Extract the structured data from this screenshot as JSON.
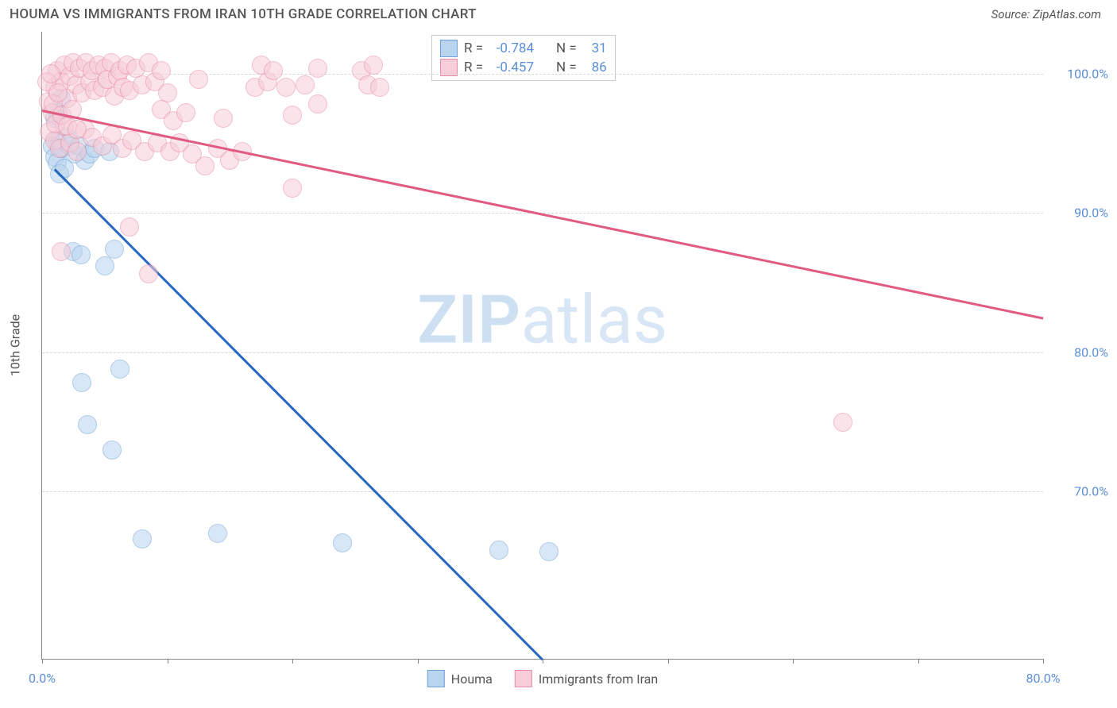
{
  "header": {
    "title": "HOUMA VS IMMIGRANTS FROM IRAN 10TH GRADE CORRELATION CHART",
    "source": "Source: ZipAtlas.com"
  },
  "watermark": {
    "bold": "ZIP",
    "light": "atlas"
  },
  "chart": {
    "type": "scatter",
    "background_color": "#ffffff",
    "grid_color": "#d8d8d8",
    "axis_color": "#888888",
    "tick_label_color": "#5b8fd6",
    "tick_fontsize": 16,
    "y_axis_title": "10th Grade",
    "xlim": [
      0,
      80
    ],
    "ylim": [
      58,
      103
    ],
    "y_ticks": [
      70,
      80,
      90,
      100
    ],
    "y_tick_labels": [
      "70.0%",
      "80.0%",
      "90.0%",
      "100.0%"
    ],
    "x_ticks": [
      0,
      10,
      20,
      30,
      40,
      50,
      60,
      70,
      80
    ],
    "x_tick_labels_shown": {
      "0": "0.0%",
      "80": "80.0%"
    },
    "marker_size": 22,
    "marker_opacity": 0.55,
    "line_width": 2.5,
    "series": [
      {
        "name": "Houma",
        "color_fill": "#b9d4ee",
        "color_stroke": "#6fa3d8",
        "line_color": "#2668c0",
        "R": "-0.784",
        "N": "31",
        "trend": {
          "x1": 1,
          "y1": 93.2,
          "x2": 40,
          "y2": 58
        },
        "points": [
          [
            1.0,
            96.8
          ],
          [
            1.3,
            97.2
          ],
          [
            1.5,
            98.2
          ],
          [
            1.2,
            95.2
          ],
          [
            0.8,
            94.8
          ],
          [
            1.0,
            94.0
          ],
          [
            1.2,
            93.6
          ],
          [
            1.6,
            94.6
          ],
          [
            2.0,
            95.4
          ],
          [
            2.2,
            94.8
          ],
          [
            2.6,
            94.2
          ],
          [
            3.0,
            94.8
          ],
          [
            3.4,
            93.8
          ],
          [
            3.8,
            94.2
          ],
          [
            4.2,
            94.6
          ],
          [
            5.4,
            94.4
          ],
          [
            2.5,
            87.2
          ],
          [
            3.1,
            87.0
          ],
          [
            5.8,
            87.4
          ],
          [
            5.0,
            86.2
          ],
          [
            3.2,
            77.8
          ],
          [
            6.2,
            78.8
          ],
          [
            3.6,
            74.8
          ],
          [
            5.6,
            73.0
          ],
          [
            8.0,
            66.6
          ],
          [
            14.0,
            67.0
          ],
          [
            24.0,
            66.3
          ],
          [
            36.5,
            65.8
          ],
          [
            40.5,
            65.7
          ],
          [
            1.4,
            92.8
          ],
          [
            1.8,
            93.2
          ]
        ]
      },
      {
        "name": "Immigrants from Iran",
        "color_fill": "#f6cdd8",
        "color_stroke": "#e88ba4",
        "line_color": "#e15a81",
        "R": "-0.457",
        "N": "86",
        "trend": {
          "x1": 0,
          "y1": 97.4,
          "x2": 80,
          "y2": 82.5
        },
        "points": [
          [
            0.5,
            98.0
          ],
          [
            0.8,
            97.2
          ],
          [
            1.0,
            99.0
          ],
          [
            1.2,
            100.2
          ],
          [
            1.5,
            99.4
          ],
          [
            1.8,
            100.6
          ],
          [
            2.0,
            98.2
          ],
          [
            2.2,
            99.8
          ],
          [
            2.5,
            100.8
          ],
          [
            2.7,
            99.2
          ],
          [
            3.0,
            100.4
          ],
          [
            3.2,
            98.6
          ],
          [
            3.5,
            100.8
          ],
          [
            3.8,
            99.4
          ],
          [
            4.0,
            100.2
          ],
          [
            4.2,
            98.8
          ],
          [
            4.5,
            100.6
          ],
          [
            4.8,
            99.0
          ],
          [
            5.0,
            100.4
          ],
          [
            5.2,
            99.6
          ],
          [
            5.5,
            100.8
          ],
          [
            5.8,
            98.4
          ],
          [
            6.0,
            99.8
          ],
          [
            6.2,
            100.2
          ],
          [
            6.5,
            99.0
          ],
          [
            6.8,
            100.6
          ],
          [
            7.0,
            98.8
          ],
          [
            7.5,
            100.4
          ],
          [
            8.0,
            99.2
          ],
          [
            8.5,
            100.8
          ],
          [
            9.0,
            99.4
          ],
          [
            9.5,
            100.2
          ],
          [
            10.0,
            98.6
          ],
          [
            0.6,
            95.8
          ],
          [
            1.0,
            95.2
          ],
          [
            1.4,
            94.6
          ],
          [
            1.8,
            96.2
          ],
          [
            2.2,
            95.0
          ],
          [
            2.8,
            94.4
          ],
          [
            3.4,
            96.0
          ],
          [
            4.0,
            95.4
          ],
          [
            4.8,
            94.8
          ],
          [
            5.6,
            95.6
          ],
          [
            6.4,
            94.6
          ],
          [
            7.2,
            95.2
          ],
          [
            8.2,
            94.4
          ],
          [
            9.2,
            95.0
          ],
          [
            10.2,
            94.4
          ],
          [
            11.0,
            95.0
          ],
          [
            12.0,
            94.2
          ],
          [
            13.0,
            93.4
          ],
          [
            14.0,
            94.6
          ],
          [
            15.0,
            93.8
          ],
          [
            16.0,
            94.4
          ],
          [
            17.0,
            99.0
          ],
          [
            17.5,
            100.6
          ],
          [
            18.0,
            99.4
          ],
          [
            18.5,
            100.2
          ],
          [
            19.5,
            99.0
          ],
          [
            20.0,
            97.0
          ],
          [
            21.0,
            99.2
          ],
          [
            22.0,
            100.4
          ],
          [
            14.5,
            96.8
          ],
          [
            9.5,
            97.4
          ],
          [
            10.5,
            96.6
          ],
          [
            11.5,
            97.2
          ],
          [
            0.4,
            99.4
          ],
          [
            0.7,
            100.0
          ],
          [
            1.1,
            96.4
          ],
          [
            0.9,
            97.8
          ],
          [
            1.3,
            98.6
          ],
          [
            1.6,
            97.0
          ],
          [
            2.0,
            96.2
          ],
          [
            2.4,
            97.4
          ],
          [
            2.8,
            96.0
          ],
          [
            7.0,
            89.0
          ],
          [
            8.5,
            85.6
          ],
          [
            1.5,
            87.2
          ],
          [
            20.0,
            91.8
          ],
          [
            25.5,
            100.2
          ],
          [
            26.0,
            99.2
          ],
          [
            26.5,
            100.6
          ],
          [
            27.0,
            99.0
          ],
          [
            22.0,
            97.8
          ],
          [
            64.0,
            75.0
          ],
          [
            12.5,
            99.6
          ]
        ]
      }
    ],
    "legend_top": {
      "border_color": "#cccccc",
      "rows": [
        {
          "swatch_fill": "#b9d4ee",
          "swatch_stroke": "#6fa3d8",
          "r_label": "R =",
          "r_val": "-0.784",
          "n_label": "N =",
          "n_val": "31"
        },
        {
          "swatch_fill": "#f6cdd8",
          "swatch_stroke": "#e88ba4",
          "r_label": "R =",
          "r_val": "-0.457",
          "n_label": "N =",
          "n_val": "86"
        }
      ]
    },
    "legend_bottom": [
      {
        "swatch_fill": "#b9d4ee",
        "swatch_stroke": "#6fa3d8",
        "label": "Houma"
      },
      {
        "swatch_fill": "#f6cdd8",
        "swatch_stroke": "#e88ba4",
        "label": "Immigrants from Iran"
      }
    ]
  }
}
